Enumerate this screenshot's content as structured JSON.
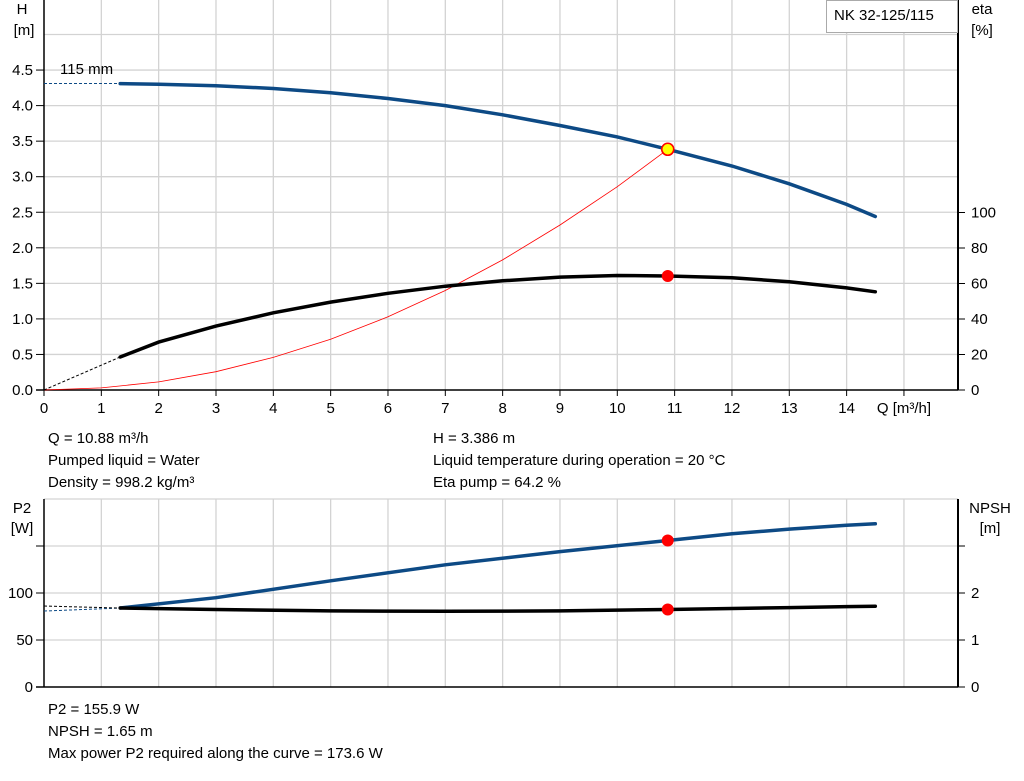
{
  "colors": {
    "curve_blue": "#0d4a85",
    "curve_black": "#000000",
    "system_curve": "#ff0000",
    "duty_point": "#ff0000",
    "duty_point_fill_top": "#ffff00",
    "grid": "#d3d3d3"
  },
  "legend_box": {
    "label": "NK 32-125/115"
  },
  "impeller_label": "115 mm",
  "chart_data": [
    {
      "type": "line",
      "name": "head-efficiency",
      "xlabel": "Q [m³/h]",
      "xlim": [
        0,
        15
      ],
      "x_ticks": [
        "0",
        "1",
        "2",
        "3",
        "4",
        "5",
        "6",
        "7",
        "8",
        "9",
        "10",
        "11",
        "12",
        "13",
        "14"
      ],
      "y_left": {
        "label_top": "H",
        "label_unit": "[m]",
        "ylim": [
          0,
          5
        ],
        "ticks": [
          "0.0",
          "0.5",
          "1.0",
          "1.5",
          "2.0",
          "2.5",
          "3.0",
          "3.5",
          "4.0",
          "4.5"
        ]
      },
      "y_right": {
        "label_top": "eta",
        "label_unit": "[%]",
        "ticks": [
          "0",
          "20",
          "40",
          "60",
          "80",
          "100"
        ]
      },
      "grid": true,
      "series": [
        {
          "key": "H",
          "axis": "left",
          "color": "#0d4a85",
          "x": [
            1.33,
            2,
            3,
            4,
            5,
            6,
            7,
            8,
            9,
            10,
            10.88,
            12,
            13,
            14,
            14.5
          ],
          "y": [
            4.31,
            4.3,
            4.28,
            4.24,
            4.18,
            4.1,
            4.0,
            3.87,
            3.72,
            3.56,
            3.386,
            3.15,
            2.9,
            2.61,
            2.44
          ],
          "extrapolated_from": [
            0,
            4.31
          ]
        },
        {
          "key": "eta",
          "axis": "right",
          "color": "#000000",
          "x": [
            1.33,
            2,
            3,
            4,
            5,
            6,
            7,
            8,
            9,
            10,
            10.88,
            12,
            13,
            14,
            14.5
          ],
          "y": [
            18.6,
            27,
            36,
            43.5,
            49.5,
            54.5,
            58.5,
            61.5,
            63.6,
            64.5,
            64.2,
            63.2,
            61,
            57.5,
            55.3
          ],
          "extrapolated_from": [
            0,
            0
          ]
        },
        {
          "key": "system",
          "axis": "left",
          "color": "#ff0000",
          "x": [
            0,
            1,
            2,
            3,
            4,
            5,
            6,
            7,
            8,
            9,
            10,
            10.88
          ],
          "y": [
            0,
            0.029,
            0.114,
            0.257,
            0.458,
            0.715,
            1.03,
            1.4,
            1.83,
            2.32,
            2.86,
            3.386
          ]
        }
      ],
      "duty_point": {
        "Q": 10.88,
        "H": 3.386,
        "eta": 64.2
      }
    },
    {
      "type": "line",
      "name": "power-npsh",
      "xlim": [
        0,
        15
      ],
      "y_left": {
        "label_top": "P2",
        "label_unit": "[W]",
        "ylim": [
          0,
          200
        ],
        "ticks": [
          "0",
          "50",
          "100",
          ""
        ]
      },
      "y_right": {
        "label_top": "NPSH",
        "label_unit": "[m]",
        "ylim": [
          0,
          4
        ],
        "ticks": [
          "0",
          "1",
          "2",
          ""
        ]
      },
      "grid": true,
      "series": [
        {
          "key": "P2",
          "axis": "left",
          "color": "#0d4a85",
          "x": [
            1.33,
            3,
            5,
            7,
            9,
            10.88,
            12,
            13,
            14,
            14.5
          ],
          "y": [
            84,
            95,
            113,
            130,
            144,
            155.9,
            163,
            168,
            172,
            173.6
          ]
        },
        {
          "key": "NPSH",
          "axis": "right",
          "color": "#000000",
          "x": [
            1.33,
            3,
            5,
            7,
            9,
            10.88,
            12,
            13,
            14,
            14.5
          ],
          "y": [
            1.68,
            1.65,
            1.62,
            1.61,
            1.62,
            1.65,
            1.67,
            1.69,
            1.71,
            1.72
          ]
        }
      ],
      "duty_point": {
        "Q": 10.88,
        "P2": 155.9,
        "NPSH": 1.65
      }
    }
  ],
  "info_top_left": [
    "Q = 10.88 m³/h",
    "Pumped liquid = Water",
    "Density = 998.2 kg/m³"
  ],
  "info_top_right": [
    "H = 3.386 m",
    "Liquid temperature during operation = 20 °C",
    "Eta pump = 64.2 %"
  ],
  "info_bottom": [
    "P2 = 155.9 W",
    "NPSH = 1.65 m",
    "Max power P2 required along the curve = 173.6 W"
  ]
}
